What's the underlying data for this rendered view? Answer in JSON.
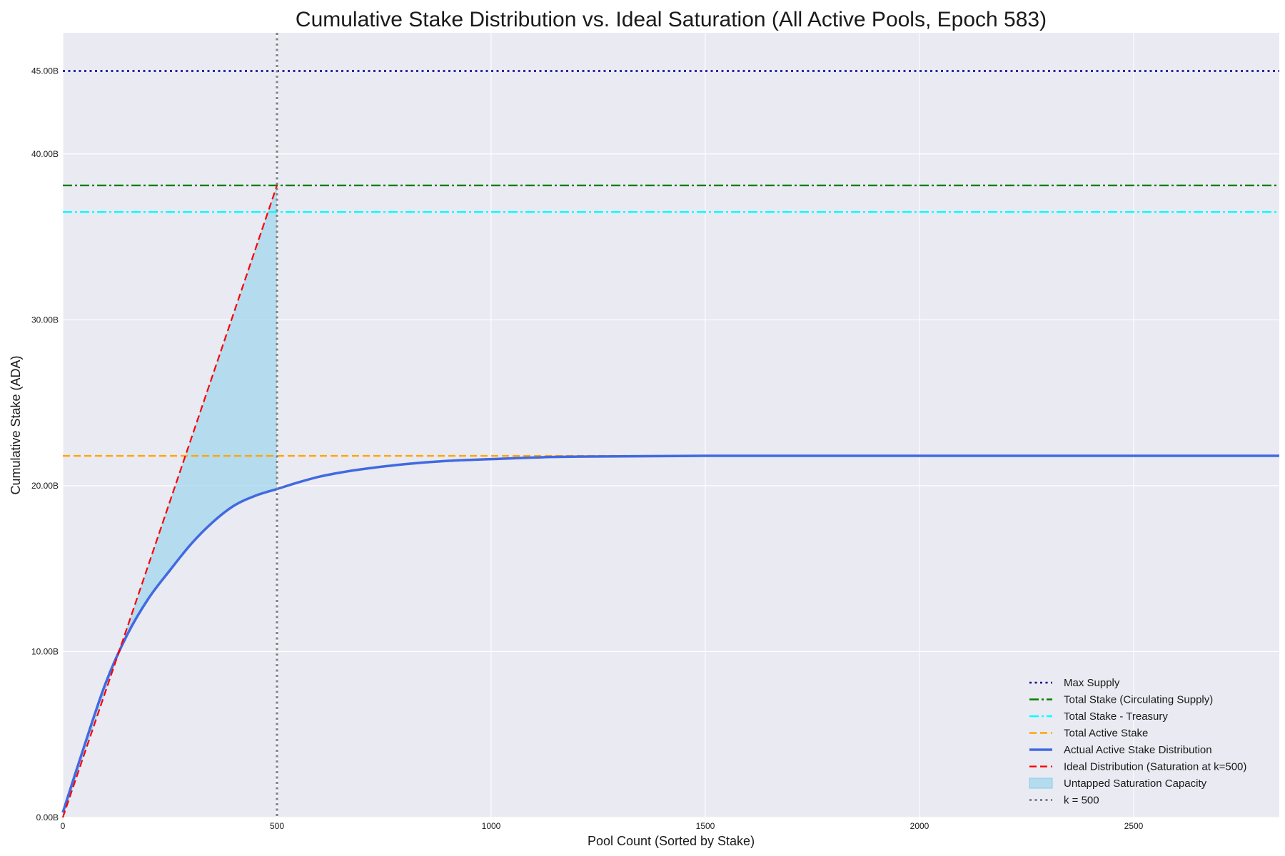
{
  "chart_data": {
    "type": "line",
    "title": "Cumulative Stake Distribution vs. Ideal Saturation (All Active Pools, Epoch 583)",
    "xlabel": "Pool Count (Sorted by Stake)",
    "ylabel": "Cumulative Stake (ADA)",
    "xlim": [
      0,
      2840
    ],
    "ylim": [
      0,
      47.3
    ],
    "x_ticks": [
      0,
      500,
      1000,
      1500,
      2000,
      2500
    ],
    "y_ticks": [
      0,
      10,
      20,
      30,
      40,
      45
    ],
    "y_tick_labels": [
      "0.00B",
      "10.00B",
      "20.00B",
      "30.00B",
      "40.00B",
      "45.00B"
    ],
    "grid": true,
    "legend_position": "lower-right",
    "horizontal_lines": [
      {
        "name": "Max Supply",
        "y": 45.0,
        "color": "#00008b",
        "dash": "dotted"
      },
      {
        "name": "Total Stake (Circulating Supply)",
        "y": 38.1,
        "color": "#008000",
        "dash": "dashdot"
      },
      {
        "name": "Total Stake - Treasury",
        "y": 36.5,
        "color": "#00ffff",
        "dash": "dashdot"
      },
      {
        "name": "Total Active Stake",
        "y": 21.8,
        "color": "#ffa500",
        "dash": "dashed"
      }
    ],
    "series": [
      {
        "name": "Actual Active Stake Distribution",
        "color": "#4169e1",
        "x": [
          0,
          50,
          100,
          150,
          200,
          250,
          300,
          350,
          400,
          450,
          500,
          550,
          600,
          650,
          700,
          800,
          900,
          1000,
          1100,
          1200,
          1500,
          2000,
          2500,
          2840
        ],
        "y": [
          0.3,
          4.3,
          8.1,
          11.0,
          13.2,
          14.9,
          16.5,
          17.8,
          18.8,
          19.4,
          19.8,
          20.2,
          20.55,
          20.8,
          21.0,
          21.3,
          21.5,
          21.6,
          21.7,
          21.75,
          21.8,
          21.8,
          21.8,
          21.8
        ]
      },
      {
        "name": "Ideal Distribution (Saturation at k=500)",
        "color": "#ff0000",
        "x": [
          0,
          500
        ],
        "y": [
          0,
          38.1
        ]
      }
    ],
    "fill_between": {
      "name": "Untapped Saturation Capacity",
      "color": "#87ceeb",
      "x_range": [
        0,
        500
      ]
    },
    "vertical_lines": [
      {
        "name": "k = 500",
        "x": 500,
        "color": "#808080",
        "dash": "dotted"
      }
    ]
  }
}
